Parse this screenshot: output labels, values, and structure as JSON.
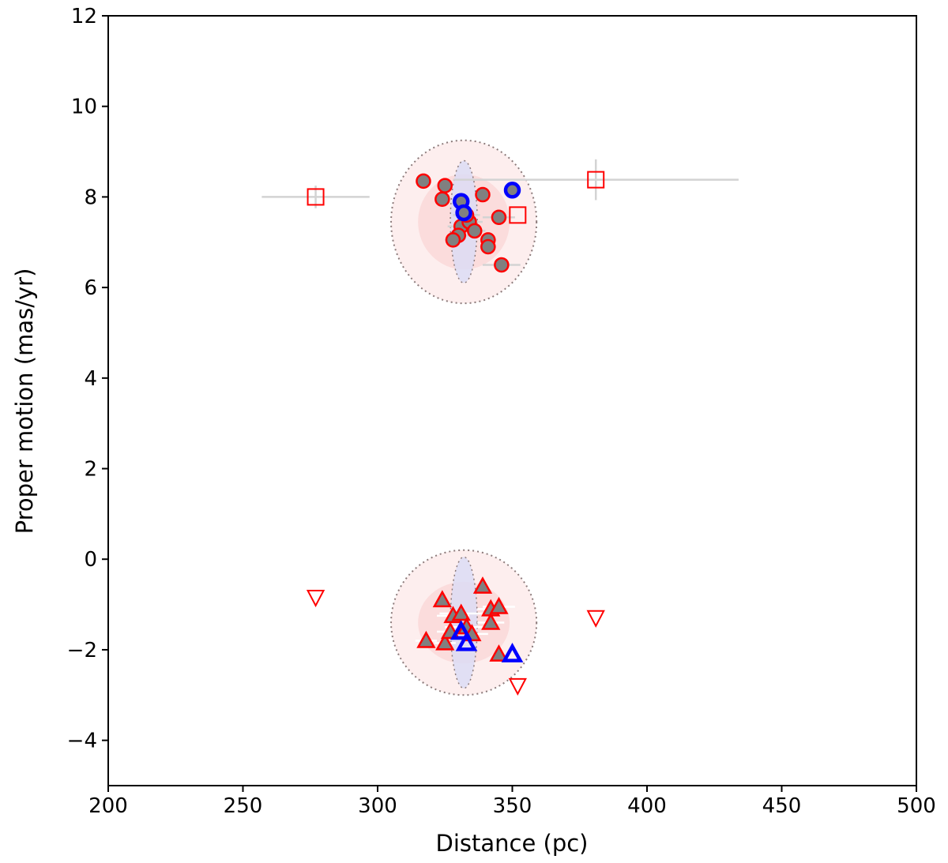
{
  "chart_data": {
    "type": "scatter",
    "title": "",
    "xlabel": "Distance (pc)",
    "ylabel": "Proper motion (mas/yr)",
    "xlim": [
      200,
      500
    ],
    "ylim": [
      -5,
      12
    ],
    "xticks": [
      200,
      250,
      300,
      350,
      400,
      450,
      500
    ],
    "yticks": [
      -4,
      -2,
      0,
      2,
      4,
      6,
      8,
      10,
      12
    ],
    "xtick_labels": [
      "200",
      "250",
      "300",
      "350",
      "400",
      "450",
      "500"
    ],
    "ytick_labels": [
      "−4",
      "−2",
      "0",
      "2",
      "4",
      "6",
      "8",
      "10",
      "12"
    ],
    "colors": {
      "red": "#ff0000",
      "blue": "#0000ff",
      "gray_fill": "#808080",
      "errorbar": "#d3d3d3",
      "contour": "#8c7b7b",
      "outer_fill": "#fdeeee",
      "inner_fill": "#fbdcdc",
      "blue_fill": "#dcdcf5"
    },
    "clusters": [
      {
        "name": "upper",
        "center": [
          332,
          7.45
        ],
        "outer_radius": [
          27,
          1.8
        ],
        "inner_radius": [
          17,
          1.05
        ],
        "blue_radius": [
          5,
          1.35
        ]
      },
      {
        "name": "lower",
        "center": [
          332,
          -1.4
        ],
        "outer_radius": [
          27,
          1.6
        ],
        "inner_radius": [
          17,
          0.9
        ],
        "blue_radius": [
          5,
          1.45
        ]
      }
    ],
    "series": [
      {
        "name": "circles-red-edge",
        "marker": "circle",
        "fill": "gray_fill",
        "edge": "red",
        "points": [
          [
            317,
            8.35
          ],
          [
            325,
            8.25
          ],
          [
            324,
            7.95
          ],
          [
            339,
            8.05
          ],
          [
            331,
            7.35
          ],
          [
            334,
            7.45
          ],
          [
            333,
            7.6
          ],
          [
            330,
            7.15
          ],
          [
            328,
            7.05
          ],
          [
            336,
            7.25
          ],
          [
            341,
            7.05
          ],
          [
            341,
            6.9
          ],
          [
            345,
            7.55
          ],
          [
            346,
            6.5
          ]
        ],
        "xerr": [
          0,
          0,
          0,
          0,
          5,
          5,
          5,
          4,
          3,
          4,
          3,
          3,
          6,
          7
        ]
      },
      {
        "name": "circles-blue-edge",
        "marker": "circle",
        "fill": "gray_fill",
        "edge": "blue",
        "points": [
          [
            331,
            7.9
          ],
          [
            332,
            7.65
          ],
          [
            350,
            8.15
          ]
        ]
      },
      {
        "name": "open-squares",
        "marker": "square",
        "fill": "none",
        "edge": "red",
        "points": [
          [
            277,
            8.0
          ],
          [
            381,
            8.38
          ],
          [
            352,
            7.6
          ]
        ],
        "xerr": [
          20,
          53,
          0
        ],
        "yerr": [
          0.25,
          0.45,
          0
        ]
      },
      {
        "name": "triangles-red-edge",
        "marker": "triangle",
        "fill": "gray_fill",
        "edge": "red",
        "points": [
          [
            324,
            -0.9
          ],
          [
            339,
            -0.6
          ],
          [
            328,
            -1.25
          ],
          [
            331,
            -1.2
          ],
          [
            333,
            -1.5
          ],
          [
            335,
            -1.65
          ],
          [
            342,
            -1.1
          ],
          [
            345,
            -1.05
          ],
          [
            342,
            -1.4
          ],
          [
            318,
            -1.8
          ],
          [
            325,
            -1.85
          ],
          [
            345,
            -2.1
          ],
          [
            327,
            -1.6
          ]
        ],
        "xerr": [
          0,
          0,
          6,
          8,
          8,
          6,
          5,
          6,
          5,
          4,
          4,
          0,
          5
        ]
      },
      {
        "name": "triangles-blue-edge",
        "marker": "triangle",
        "fill": "none",
        "edge": "blue",
        "points": [
          [
            331,
            -1.6
          ],
          [
            333,
            -1.85
          ],
          [
            350,
            -2.1
          ]
        ]
      },
      {
        "name": "open-down-triangles",
        "marker": "triangle-down",
        "fill": "none",
        "edge": "red",
        "points": [
          [
            277,
            -0.85
          ],
          [
            381,
            -1.3
          ],
          [
            352,
            -2.8
          ]
        ]
      }
    ]
  }
}
